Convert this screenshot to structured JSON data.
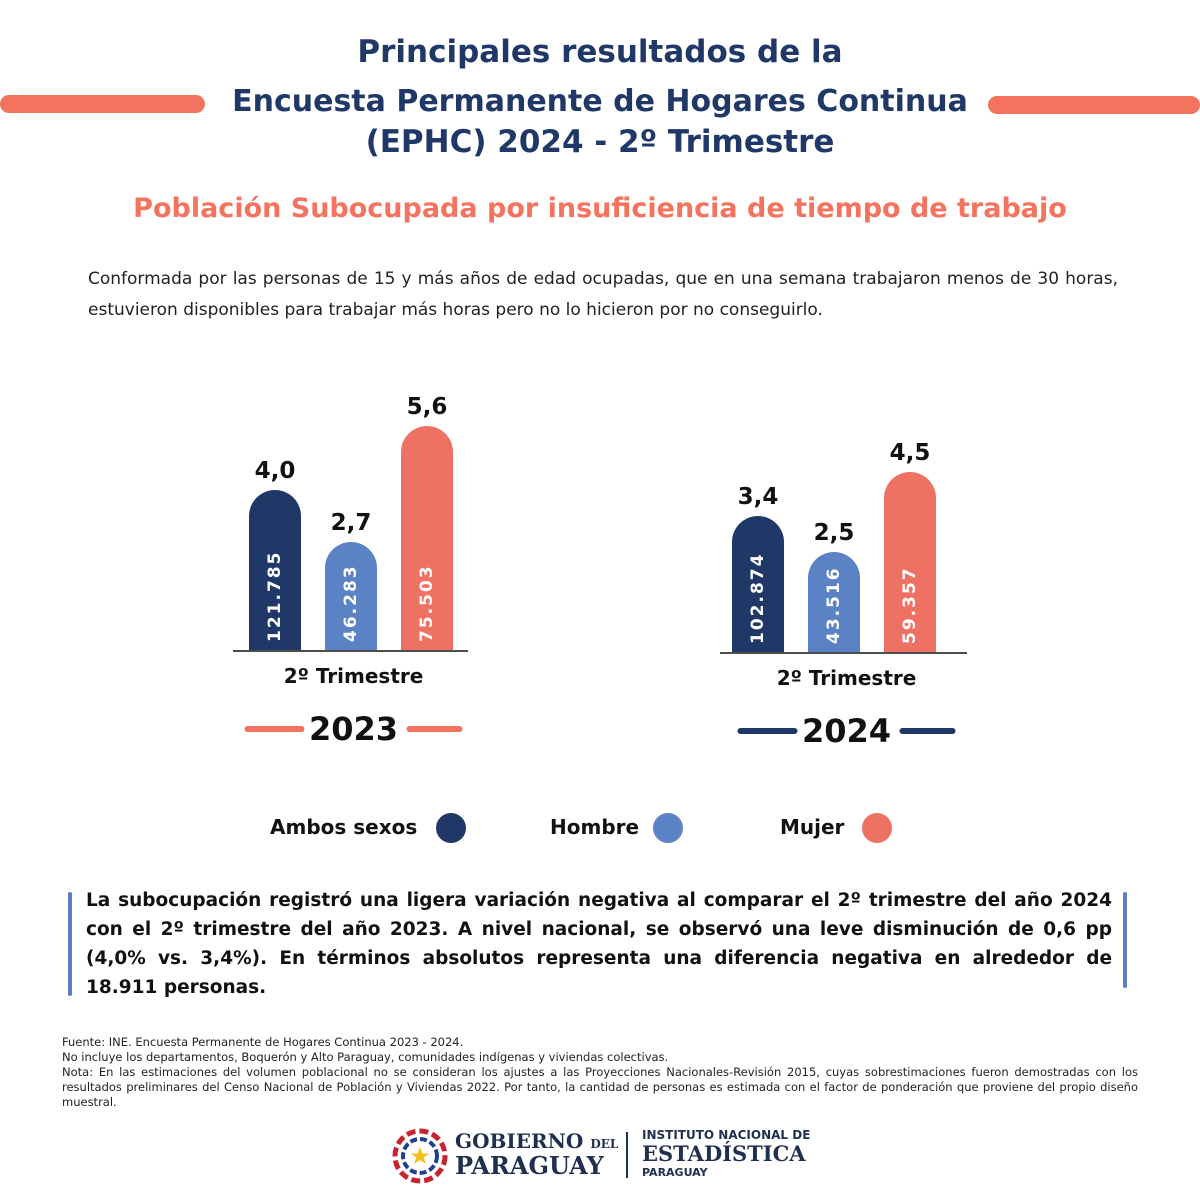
{
  "header": {
    "title_line1": "Principales resultados de la",
    "title_line2": "Encuesta Permanente de Hogares Continua",
    "title_line3": "(EPHC) 2024 - 2º Trimestre"
  },
  "subtitle": "Población Subocupada por insuficiencia de tiempo de trabajo",
  "intro": "Conformada por las personas de 15 y más años de edad ocupadas, que en una semana trabajaron menos de 30 horas, estuvieron disponibles para trabajar más horas pero no lo hicieron por no conseguirlo.",
  "colors": {
    "navy": "#1f3868",
    "blue": "#5b82c4",
    "coral": "#ef7163",
    "orange": "#f4735f"
  },
  "chart_data": [
    {
      "type": "bar",
      "xlabel": "2º Trimestre",
      "year": "2023",
      "categories": [
        "Ambos sexos",
        "Hombre",
        "Mujer"
      ],
      "rates": [
        4.0,
        2.7,
        5.6
      ],
      "rate_labels": [
        "4,0",
        "2,7",
        "5,6"
      ],
      "counts": [
        121785,
        46283,
        75503
      ],
      "count_labels": [
        "121.785",
        "46.283",
        "75.503"
      ]
    },
    {
      "type": "bar",
      "xlabel": "2º Trimestre",
      "year": "2024",
      "categories": [
        "Ambos sexos",
        "Hombre",
        "Mujer"
      ],
      "rates": [
        3.4,
        2.5,
        4.5
      ],
      "rate_labels": [
        "3,4",
        "2,5",
        "4,5"
      ],
      "counts": [
        102874,
        43516,
        59357
      ],
      "count_labels": [
        "102.874",
        "43.516",
        "59.357"
      ]
    }
  ],
  "legend": [
    {
      "label": "Ambos sexos",
      "color": "#1f3868"
    },
    {
      "label": "Hombre",
      "color": "#5b82c4"
    },
    {
      "label": "Mujer",
      "color": "#ef7163"
    }
  ],
  "summary": "La subocupación registró una ligera variación negativa al comparar el 2º trimestre del año 2024 con el 2º trimestre del año 2023. A nivel nacional, se observó una leve disminución de 0,6 pp (4,0% vs. 3,4%). En términos absolutos representa una diferencia negativa en alrededor de 18.911 personas.",
  "footer": {
    "fuente": "Fuente: INE. Encuesta Permanente de Hogares Continua 2023 - 2024.",
    "incluye": "No incluye los departamentos, Boquerón y Alto Paraguay, comunidades indígenas y viviendas colectivas.",
    "nota": "Nota: En las estimaciones del volumen poblacional no se consideran los ajustes a las Proyecciones Nacionales-Revisión 2015, cuyas sobrestimaciones fueron demostradas con los resultados preliminares del Censo Nacional de Población y Viviendas 2022. Por tanto, la cantidad de personas es estimada con el factor de ponderación que proviene del propio diseño muestral."
  },
  "logos": {
    "gob_line1": "GOBIERNO",
    "gob_del": "DEL",
    "gob_line2": "PARAGUAY",
    "ine_line1": "INSTITUTO NACIONAL DE",
    "ine_line2": "ESTADÍSTICA",
    "ine_line3": "PARAGUAY"
  }
}
